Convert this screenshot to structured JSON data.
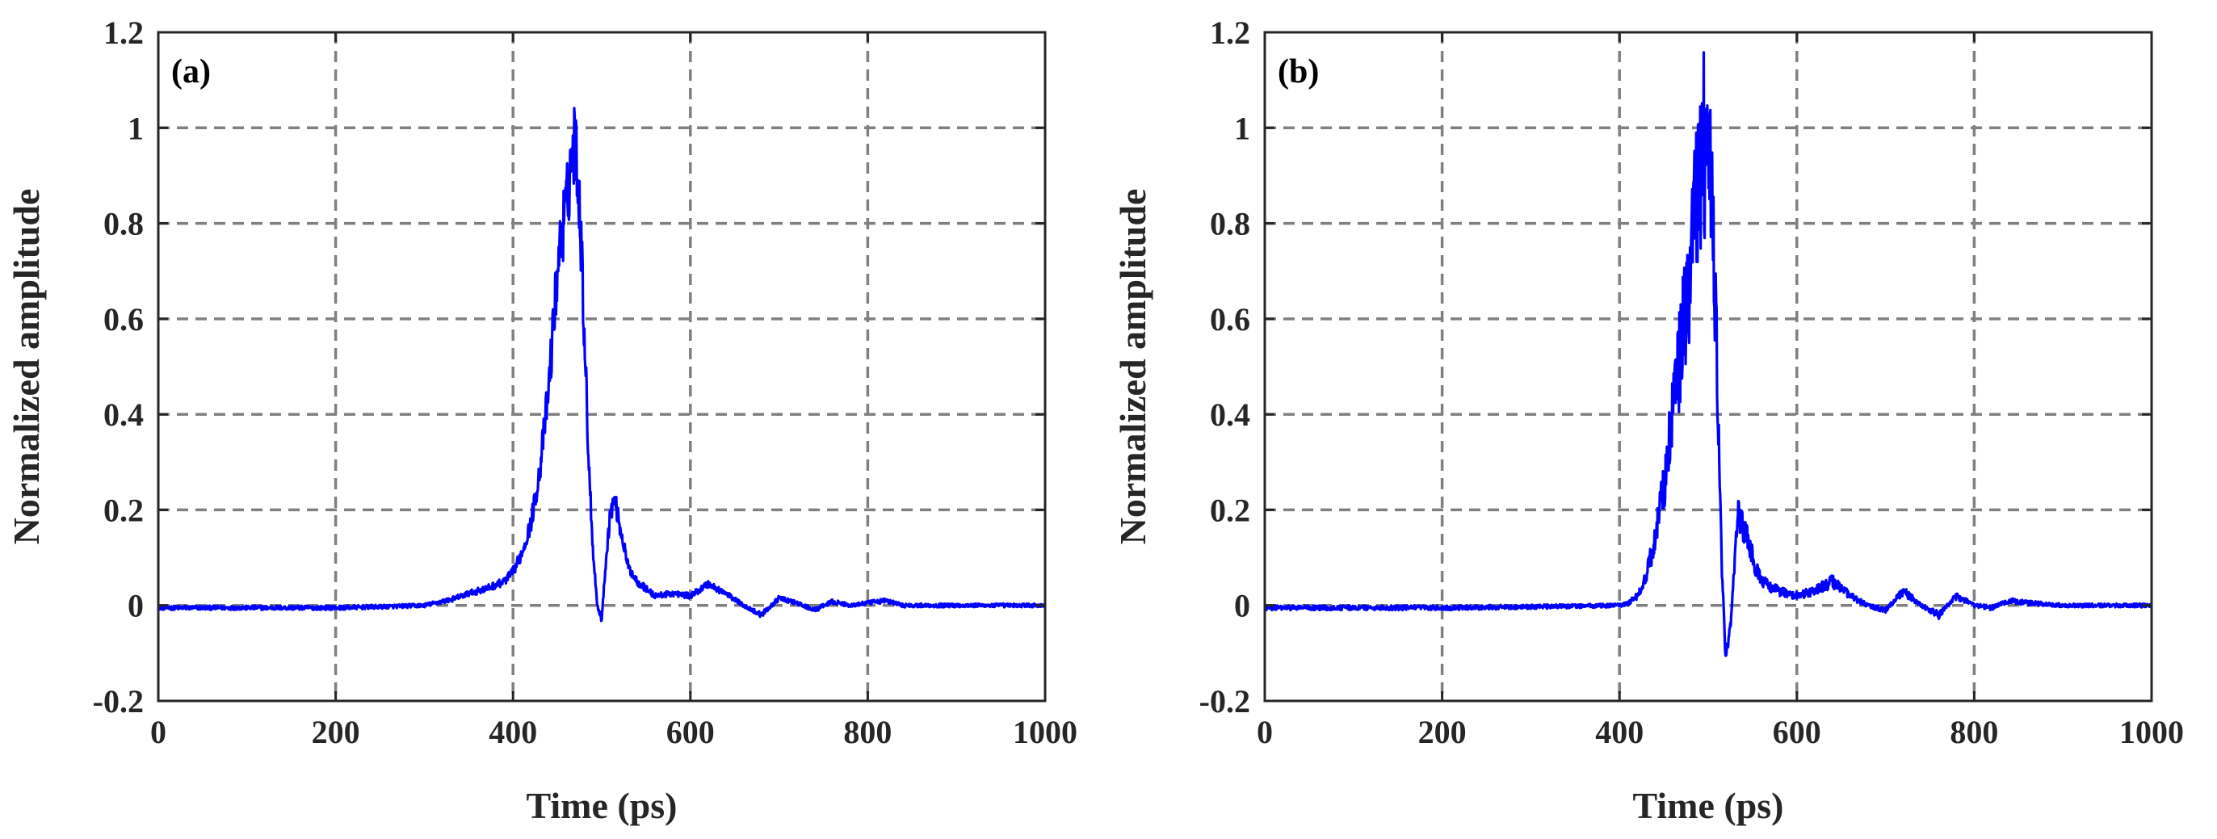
{
  "chart_data": [
    {
      "type": "line",
      "panel_label": "(a)",
      "xlabel": "Time (ps)",
      "ylabel": "Normalized amplitude",
      "xlim": [
        0,
        1000
      ],
      "ylim": [
        -0.2,
        1.2
      ],
      "x_ticks": [
        "0",
        "200",
        "400",
        "600",
        "800",
        "1000"
      ],
      "y_ticks": [
        "-0.2",
        "0",
        "0.2",
        "0.4",
        "0.6",
        "0.8",
        "1",
        "1.2"
      ],
      "grid": true,
      "series": [
        {
          "name": "Normalized amplitude (a)",
          "color": "#0000ff",
          "x": [
            0,
            100,
            200,
            250,
            300,
            330,
            350,
            370,
            390,
            400,
            410,
            420,
            430,
            440,
            450,
            455,
            460,
            465,
            470,
            475,
            480,
            485,
            490,
            495,
            500,
            505,
            510,
            515,
            520,
            530,
            540,
            550,
            560,
            580,
            600,
            620,
            640,
            660,
            680,
            700,
            720,
            740,
            760,
            780,
            800,
            820,
            840,
            900,
            1000
          ],
          "y": [
            -0.005,
            -0.005,
            -0.005,
            -0.003,
            0.0,
            0.012,
            0.025,
            0.035,
            0.05,
            0.07,
            0.11,
            0.17,
            0.28,
            0.45,
            0.7,
            0.78,
            0.83,
            0.92,
            0.98,
            0.85,
            0.6,
            0.32,
            0.12,
            0.0,
            -0.03,
            0.1,
            0.2,
            0.22,
            0.17,
            0.08,
            0.05,
            0.035,
            0.02,
            0.025,
            0.02,
            0.045,
            0.025,
            0.0,
            -0.02,
            0.015,
            0.005,
            -0.01,
            0.008,
            0.0,
            0.005,
            0.01,
            0.0,
            0.0,
            0.0
          ]
        }
      ]
    },
    {
      "type": "line",
      "panel_label": "(b)",
      "xlabel": "Time (ps)",
      "ylabel": "Normalized amplitude",
      "xlim": [
        0,
        1000
      ],
      "ylim": [
        -0.2,
        1.2
      ],
      "x_ticks": [
        "0",
        "200",
        "400",
        "600",
        "800",
        "1000"
      ],
      "y_ticks": [
        "-0.2",
        "0",
        "0.2",
        "0.4",
        "0.6",
        "0.8",
        "1",
        "1.2"
      ],
      "grid": true,
      "series": [
        {
          "name": "Normalized amplitude (b)",
          "color": "#0000ff",
          "x": [
            0,
            100,
            200,
            300,
            400,
            410,
            420,
            430,
            440,
            450,
            460,
            470,
            480,
            485,
            490,
            495,
            500,
            505,
            510,
            515,
            520,
            525,
            530,
            535,
            540,
            550,
            560,
            580,
            600,
            620,
            640,
            660,
            680,
            700,
            720,
            740,
            760,
            780,
            800,
            820,
            840,
            860,
            900,
            1000
          ],
          "y": [
            -0.005,
            -0.005,
            -0.005,
            -0.003,
            0.0,
            0.005,
            0.02,
            0.06,
            0.14,
            0.25,
            0.4,
            0.55,
            0.7,
            0.8,
            0.9,
            0.97,
            0.95,
            0.8,
            0.5,
            0.1,
            -0.12,
            -0.05,
            0.1,
            0.2,
            0.16,
            0.1,
            0.05,
            0.03,
            0.02,
            0.03,
            0.05,
            0.02,
            0.0,
            -0.01,
            0.03,
            0.0,
            -0.02,
            0.02,
            0.0,
            -0.005,
            0.01,
            0.005,
            0.0,
            0.0
          ]
        }
      ]
    }
  ]
}
